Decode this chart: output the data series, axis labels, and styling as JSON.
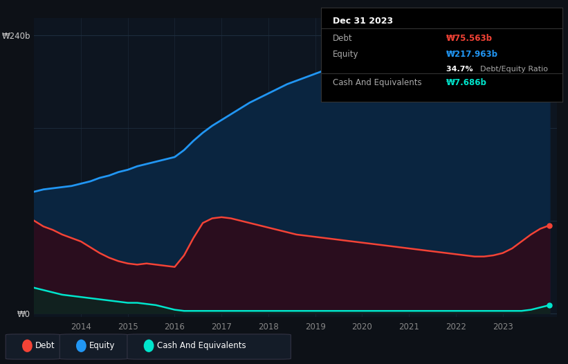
{
  "bg_color": "#0d1117",
  "plot_bg": "#0d1520",
  "grid_color": "#1e2d3d",
  "years": [
    2013.0,
    2013.2,
    2013.4,
    2013.6,
    2013.8,
    2014.0,
    2014.2,
    2014.4,
    2014.6,
    2014.8,
    2015.0,
    2015.2,
    2015.4,
    2015.6,
    2015.8,
    2016.0,
    2016.2,
    2016.4,
    2016.6,
    2016.8,
    2017.0,
    2017.2,
    2017.4,
    2017.6,
    2017.8,
    2018.0,
    2018.2,
    2018.4,
    2018.6,
    2018.8,
    2019.0,
    2019.2,
    2019.4,
    2019.6,
    2019.8,
    2020.0,
    2020.2,
    2020.4,
    2020.6,
    2020.8,
    2021.0,
    2021.2,
    2021.4,
    2021.6,
    2021.8,
    2022.0,
    2022.2,
    2022.4,
    2022.6,
    2022.8,
    2023.0,
    2023.2,
    2023.4,
    2023.6,
    2023.8,
    2024.0
  ],
  "equity": [
    105,
    107,
    108,
    109,
    110,
    112,
    114,
    117,
    119,
    122,
    124,
    127,
    129,
    131,
    133,
    135,
    141,
    149,
    156,
    162,
    167,
    172,
    177,
    182,
    186,
    190,
    194,
    198,
    201,
    204,
    207,
    210,
    212,
    214,
    216,
    218,
    220,
    222,
    223,
    224,
    225,
    226,
    227,
    228,
    229,
    230,
    231,
    232,
    232,
    232,
    232,
    231,
    229,
    226,
    223,
    218
  ],
  "debt": [
    80,
    75,
    72,
    68,
    65,
    62,
    57,
    52,
    48,
    45,
    43,
    42,
    43,
    42,
    41,
    40,
    50,
    65,
    78,
    82,
    83,
    82,
    80,
    78,
    76,
    74,
    72,
    70,
    68,
    67,
    66,
    65,
    64,
    63,
    62,
    61,
    60,
    59,
    58,
    57,
    56,
    55,
    54,
    53,
    52,
    51,
    50,
    49,
    49,
    50,
    52,
    56,
    62,
    68,
    73,
    76
  ],
  "cash": [
    22,
    20,
    18,
    16,
    15,
    14,
    13,
    12,
    11,
    10,
    9,
    9,
    8,
    7,
    5,
    3,
    2,
    2,
    2,
    2,
    2,
    2,
    2,
    2,
    2,
    2,
    2,
    2,
    2,
    2,
    2,
    2,
    2,
    2,
    2,
    2,
    2,
    2,
    2,
    2,
    2,
    2,
    2,
    2,
    2,
    2,
    2,
    2,
    2,
    2,
    2,
    2,
    2,
    3,
    5,
    7
  ],
  "equity_color": "#2196f3",
  "debt_color": "#f44336",
  "cash_color": "#00e5cc",
  "equity_fill": "#0a2540",
  "debt_fill": "#2a0d1e",
  "cash_fill": "#0d2520",
  "xtick_labels": [
    "2014",
    "2015",
    "2016",
    "2017",
    "2018",
    "2019",
    "2020",
    "2021",
    "2022",
    "2023"
  ],
  "xtick_positions": [
    2014,
    2015,
    2016,
    2017,
    2018,
    2019,
    2020,
    2021,
    2022,
    2023
  ],
  "ylabel_top": "₩240b",
  "ylabel_bottom": "₩0",
  "tooltip_title": "Dec 31 2023",
  "tooltip_debt_label": "Debt",
  "tooltip_debt_val": "₩75.563b",
  "tooltip_equity_label": "Equity",
  "tooltip_equity_val": "₩217.963b",
  "tooltip_ratio_val": "34.7%",
  "tooltip_ratio_label": "Debt/Equity Ratio",
  "tooltip_cash_label": "Cash And Equivalents",
  "tooltip_cash_val": "₩7.686b",
  "legend_items": [
    {
      "label": "Debt",
      "color": "#f44336"
    },
    {
      "label": "Equity",
      "color": "#2196f3"
    },
    {
      "label": "Cash And Equivalents",
      "color": "#00e5cc"
    }
  ]
}
